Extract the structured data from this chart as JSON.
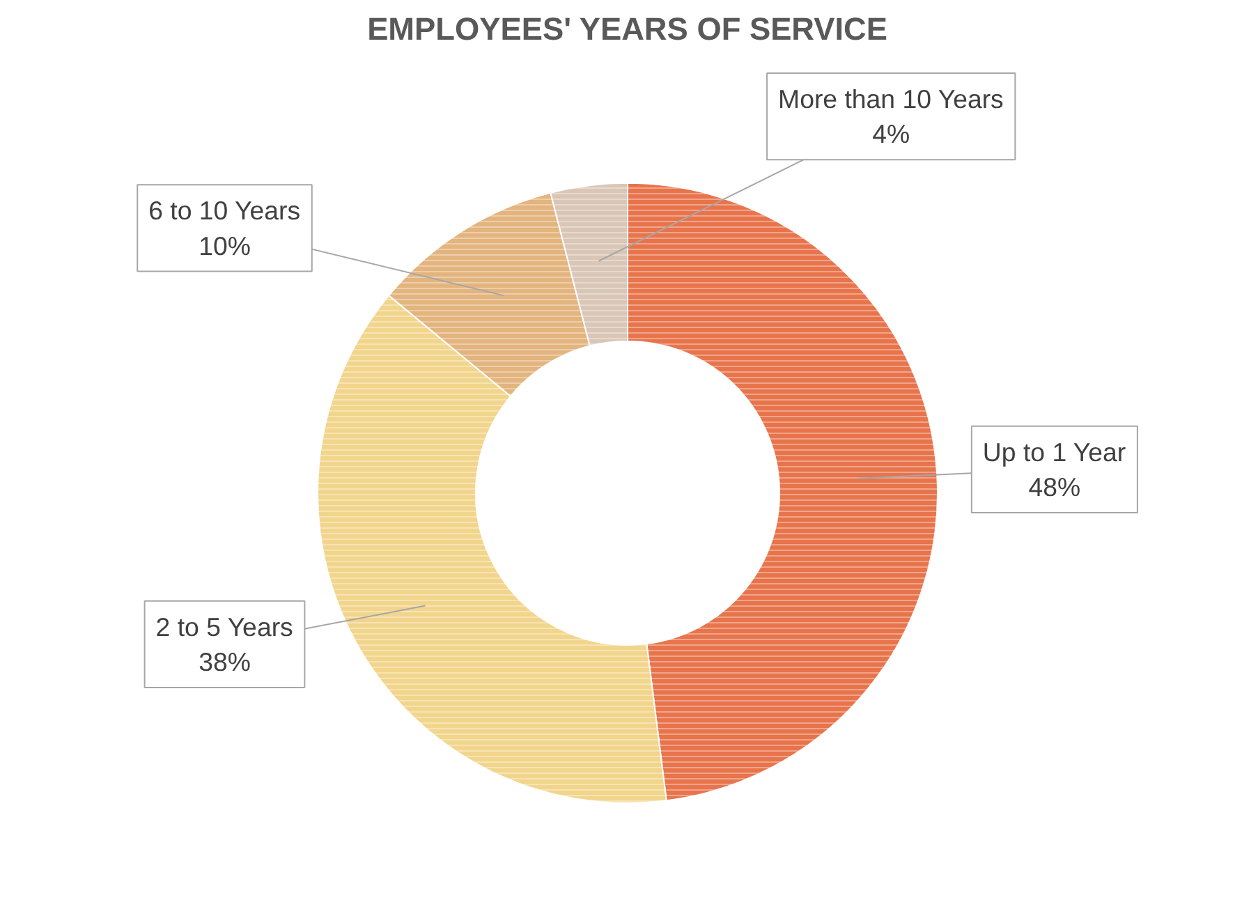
{
  "chart_data": {
    "type": "donut",
    "title": "EMPLOYEES' YEARS OF SERVICE",
    "categories": [
      "Up to 1 Year",
      "2 to 5 Years",
      "6 to 10 Years",
      "More than 10 Years"
    ],
    "values": [
      48,
      38,
      10,
      4
    ],
    "colors": [
      "#e8744c",
      "#f2d58c",
      "#e3b47e",
      "#d9c6b6"
    ],
    "value_labels": [
      "48%",
      "38%",
      "10%",
      "4%"
    ]
  }
}
